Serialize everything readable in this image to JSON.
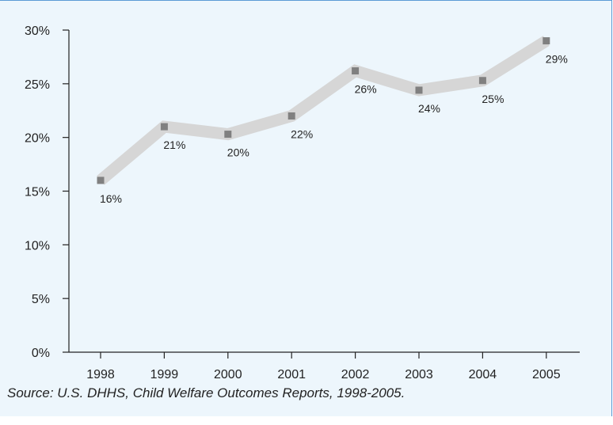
{
  "chart_data": {
    "type": "line",
    "x": [
      "1998",
      "1999",
      "2000",
      "2001",
      "2002",
      "2003",
      "2004",
      "2005"
    ],
    "values": [
      16,
      21,
      20.3,
      22,
      26.2,
      24.4,
      25.3,
      29
    ],
    "data_labels": [
      "16%",
      "21%",
      "20%",
      "22%",
      "26%",
      "24%",
      "25%",
      "29%"
    ],
    "yticks": [
      "0%",
      "5%",
      "10%",
      "15%",
      "20%",
      "25%",
      "30%"
    ],
    "ylim": [
      0,
      30
    ],
    "grid": false,
    "colors": {
      "band": "#d6d6d6",
      "marker": "#808080",
      "axis": "#222222",
      "background": "#edf6fc",
      "border": "#5b9bd5"
    }
  },
  "source": "Source: U.S. DHHS, Child Welfare Outcomes Reports, 1998-2005."
}
